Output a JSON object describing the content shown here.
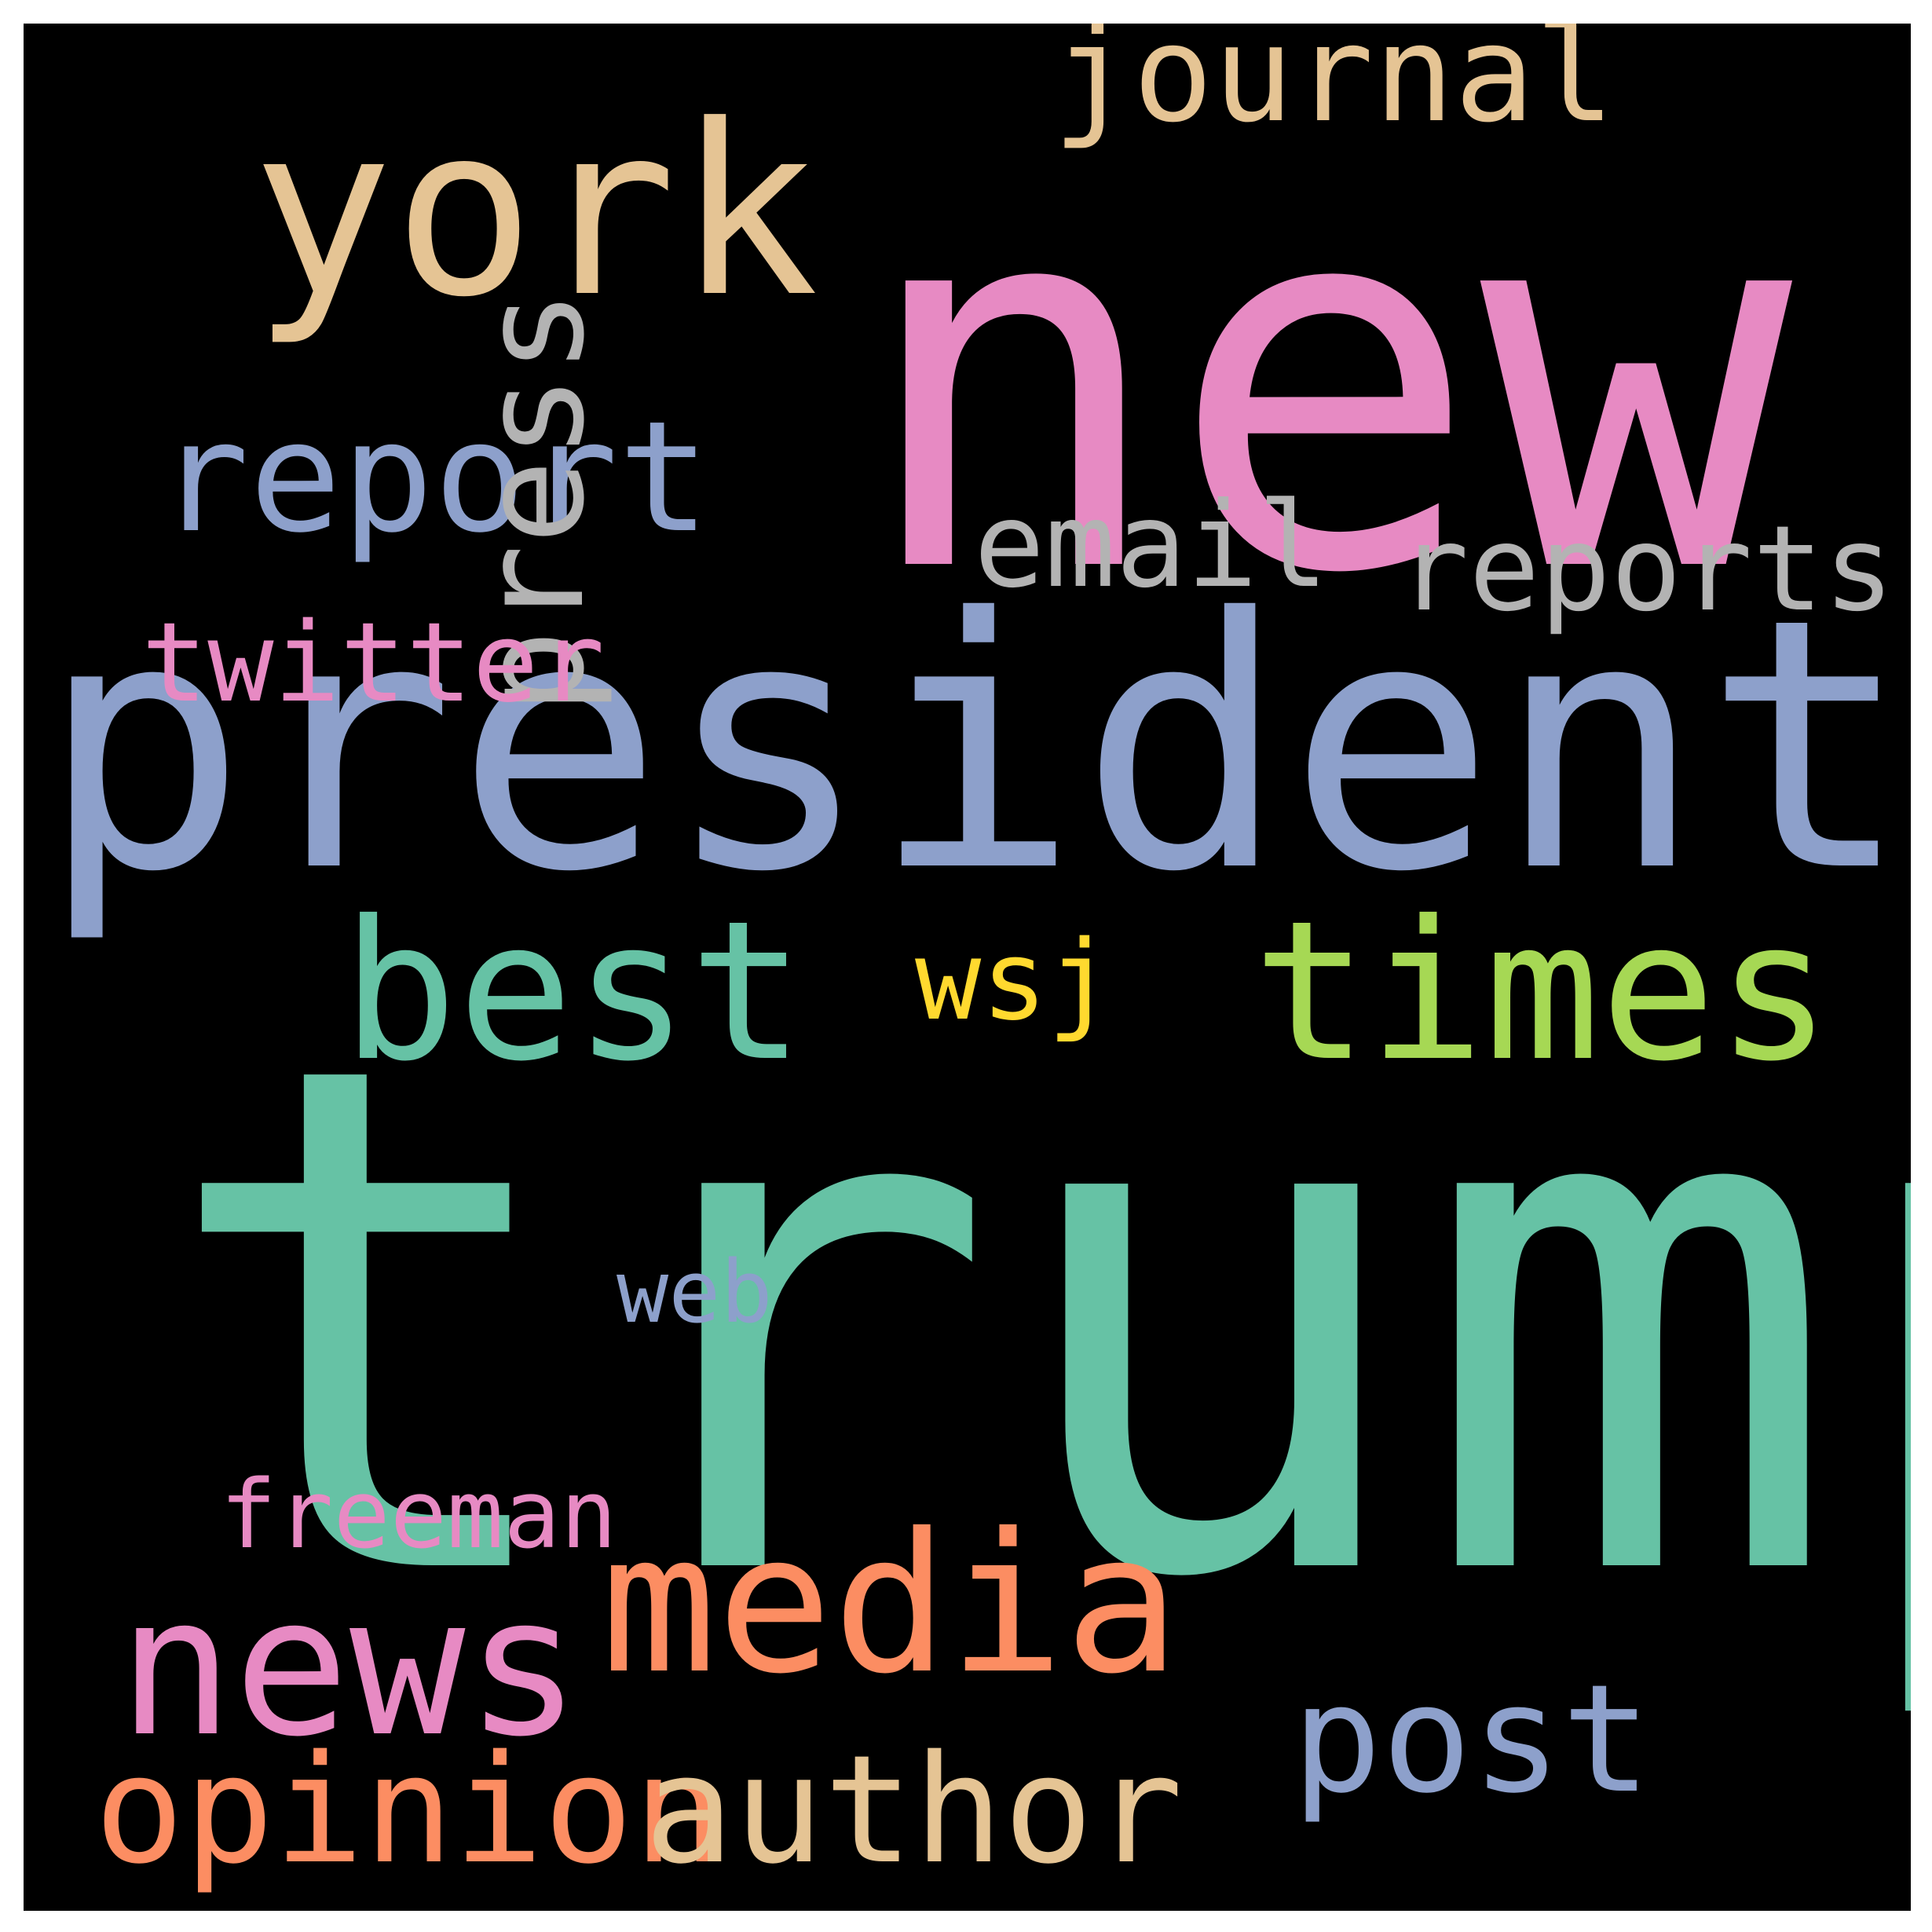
{
  "words": [
    {
      "text": "trump",
      "color": "#66c2a5"
    },
    {
      "text": "new",
      "color": "#e78ac3"
    },
    {
      "text": "president",
      "color": "#8da0cb"
    },
    {
      "text": "york",
      "color": "#e5c494"
    },
    {
      "text": "journal",
      "color": "#e5c494"
    },
    {
      "text": "report",
      "color": "#8da0cb"
    },
    {
      "text": "press",
      "color": "#b3b3b3"
    },
    {
      "text": "email",
      "color": "#b3b3b3"
    },
    {
      "text": "reports",
      "color": "#b3b3b3"
    },
    {
      "text": "twitter",
      "color": "#e78ac3"
    },
    {
      "text": "best",
      "color": "#66c2a5"
    },
    {
      "text": "wsj",
      "color": "#ffd92f"
    },
    {
      "text": "times",
      "color": "#a6d854"
    },
    {
      "text": "web",
      "color": "#8da0cb"
    },
    {
      "text": "freeman",
      "color": "#e78ac3"
    },
    {
      "text": "media",
      "color": "#fc8d62"
    },
    {
      "text": "news",
      "color": "#e78ac3"
    },
    {
      "text": "post",
      "color": "#8da0cb"
    },
    {
      "text": "opinion",
      "color": "#fc8d62"
    },
    {
      "text": "author",
      "color": "#e5c494"
    }
  ],
  "background": "#000000"
}
